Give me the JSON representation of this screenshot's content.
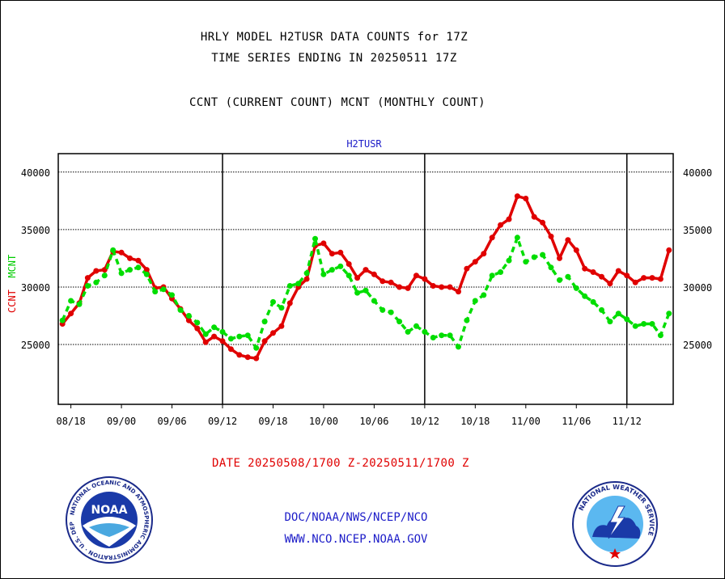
{
  "header": {
    "line1": "HRLY MODEL H2TUSR DATA COUNTS for 17Z",
    "line2": "TIME SERIES ENDING IN 20250511 17Z",
    "line3": "CCNT (CURRENT COUNT) MCNT (MONTHLY COUNT)"
  },
  "footer": {
    "date_range": "DATE 20250508/1700 Z-20250511/1700 Z",
    "org_path": "DOC/NOAA/NWS/NCEP/NCO",
    "website": "WWW.NCO.NCEP.NOAA.GOV"
  },
  "logos": {
    "noaa_text": "NOAA",
    "noaa_ring": "NATIONAL OCEANIC AND ATMOSPHERIC ADMINISTRATION · U.S. DEPARTMENT OF COMMERCE ·",
    "nws_ring": "NATIONAL WEATHER SERVICE"
  },
  "colors": {
    "ccnt": "#e00000",
    "mcnt": "#00dd00",
    "label_blue": "#1c1cc8",
    "gridline": "#000000"
  },
  "chart_data": {
    "type": "line",
    "title": "H2TUSR",
    "ylabel_ccnt": "CCNT",
    "ylabel_mcnt": "MCNT",
    "ylim": [
      19800,
      41600
    ],
    "yticks": [
      25000,
      30000,
      35000,
      40000
    ],
    "ytick_labels": [
      "25000",
      "30000",
      "35000",
      "40000"
    ],
    "xlim": [
      -1.5,
      71.5
    ],
    "xticks": [
      0,
      6,
      12,
      18,
      24,
      30,
      36,
      42,
      48,
      54,
      60,
      66
    ],
    "xtick_labels": [
      "08/18",
      "09/00",
      "09/06",
      "09/12",
      "09/18",
      "10/00",
      "10/06",
      "10/12",
      "10/18",
      "11/00",
      "11/06",
      "11/12"
    ],
    "day_boundaries": [
      18,
      42,
      66
    ],
    "grid": "horizontal dotted",
    "x_start": -1,
    "series": [
      {
        "name": "CCNT",
        "values": [
          26800,
          27700,
          28600,
          30800,
          31400,
          31500,
          33100,
          33000,
          32500,
          32300,
          31500,
          29900,
          30000,
          29000,
          28100,
          27100,
          26400,
          25200,
          25700,
          25300,
          24600,
          24100,
          23900,
          23800,
          25300,
          26000,
          26600,
          28600,
          30000,
          30700,
          33600,
          33800,
          32900,
          33000,
          32000,
          30800,
          31500,
          31100,
          30500,
          30400,
          30000,
          29900,
          31000,
          30700,
          30100,
          30000,
          30000,
          29600,
          31600,
          32200,
          32900,
          34300,
          35400,
          35900,
          37900,
          37700,
          36100,
          35600,
          34400,
          32500,
          34100,
          33200,
          31600,
          31300,
          30900,
          30300,
          31400,
          31000,
          30400,
          30800,
          30800,
          30700,
          33200
        ]
      },
      {
        "name": "MCNT",
        "values": [
          27100,
          28800,
          28500,
          30100,
          30400,
          31000,
          33200,
          31200,
          31500,
          31700,
          31100,
          29600,
          29800,
          29300,
          28000,
          27500,
          26900,
          25900,
          26500,
          26100,
          25500,
          25700,
          25800,
          24700,
          27000,
          28700,
          28200,
          30100,
          30300,
          31200,
          34200,
          31100,
          31500,
          31800,
          31000,
          29500,
          29700,
          28800,
          28000,
          27800,
          27000,
          26100,
          26600,
          26100,
          25600,
          25800,
          25800,
          24800,
          27100,
          28800,
          29300,
          31000,
          31300,
          32300,
          34300,
          32200,
          32600,
          32800,
          31700,
          30600,
          30900,
          29900,
          29200,
          28700,
          28000,
          27000,
          27700,
          27200,
          26600,
          26800,
          26800,
          25800,
          27700
        ]
      }
    ]
  }
}
